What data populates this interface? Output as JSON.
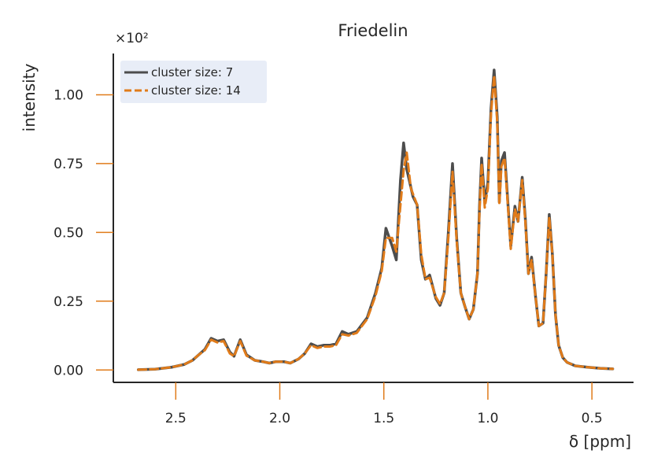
{
  "chart_data": {
    "type": "line",
    "title": "Friedelin",
    "xlabel": "δ [ppm]",
    "ylabel": "intensity",
    "y_multiplier_label": "×10²",
    "xlim": [
      2.8,
      0.3
    ],
    "ylim": [
      -0.045,
      1.15
    ],
    "x_reversed": true,
    "x_ticks": [
      2.5,
      2.0,
      1.5,
      1.0,
      0.5
    ],
    "x_tick_labels": [
      "2.5",
      "2.0",
      "1.5",
      "1.0",
      "0.5"
    ],
    "y_ticks": [
      0.0,
      0.25,
      0.5,
      0.75,
      1.0
    ],
    "y_tick_labels": [
      "0.00",
      "0.25",
      "0.50",
      "0.75",
      "1.00"
    ],
    "grid": false,
    "legend_position": "top-left",
    "series": [
      {
        "name": "cluster size: 7",
        "color": "#4d4d4d",
        "style": "solid",
        "points": [
          [
            2.68,
            0.001
          ],
          [
            2.6,
            0.003
          ],
          [
            2.52,
            0.01
          ],
          [
            2.46,
            0.02
          ],
          [
            2.42,
            0.035
          ],
          [
            2.39,
            0.055
          ],
          [
            2.36,
            0.075
          ],
          [
            2.33,
            0.115
          ],
          [
            2.3,
            0.105
          ],
          [
            2.27,
            0.11
          ],
          [
            2.24,
            0.065
          ],
          [
            2.22,
            0.05
          ],
          [
            2.19,
            0.11
          ],
          [
            2.16,
            0.055
          ],
          [
            2.12,
            0.035
          ],
          [
            2.08,
            0.03
          ],
          [
            2.05,
            0.025
          ],
          [
            2.02,
            0.03
          ],
          [
            1.98,
            0.03
          ],
          [
            1.95,
            0.025
          ],
          [
            1.91,
            0.04
          ],
          [
            1.88,
            0.06
          ],
          [
            1.85,
            0.095
          ],
          [
            1.82,
            0.085
          ],
          [
            1.79,
            0.09
          ],
          [
            1.76,
            0.09
          ],
          [
            1.73,
            0.095
          ],
          [
            1.7,
            0.14
          ],
          [
            1.67,
            0.13
          ],
          [
            1.63,
            0.14
          ],
          [
            1.58,
            0.19
          ],
          [
            1.54,
            0.28
          ],
          [
            1.51,
            0.37
          ],
          [
            1.49,
            0.515
          ],
          [
            1.46,
            0.45
          ],
          [
            1.44,
            0.4
          ],
          [
            1.42,
            0.69
          ],
          [
            1.405,
            0.825
          ],
          [
            1.39,
            0.73
          ],
          [
            1.36,
            0.63
          ],
          [
            1.34,
            0.6
          ],
          [
            1.32,
            0.4
          ],
          [
            1.3,
            0.33
          ],
          [
            1.28,
            0.345
          ],
          [
            1.25,
            0.26
          ],
          [
            1.23,
            0.235
          ],
          [
            1.21,
            0.28
          ],
          [
            1.19,
            0.5
          ],
          [
            1.17,
            0.75
          ],
          [
            1.15,
            0.48
          ],
          [
            1.13,
            0.28
          ],
          [
            1.11,
            0.23
          ],
          [
            1.09,
            0.185
          ],
          [
            1.07,
            0.22
          ],
          [
            1.05,
            0.35
          ],
          [
            1.04,
            0.6
          ],
          [
            1.03,
            0.77
          ],
          [
            1.015,
            0.61
          ],
          [
            1.0,
            0.68
          ],
          [
            0.985,
            0.95
          ],
          [
            0.97,
            1.09
          ],
          [
            0.955,
            0.92
          ],
          [
            0.945,
            0.61
          ],
          [
            0.935,
            0.76
          ],
          [
            0.92,
            0.79
          ],
          [
            0.905,
            0.62
          ],
          [
            0.89,
            0.45
          ],
          [
            0.87,
            0.595
          ],
          [
            0.855,
            0.54
          ],
          [
            0.835,
            0.7
          ],
          [
            0.82,
            0.55
          ],
          [
            0.805,
            0.35
          ],
          [
            0.79,
            0.41
          ],
          [
            0.77,
            0.26
          ],
          [
            0.755,
            0.16
          ],
          [
            0.735,
            0.17
          ],
          [
            0.72,
            0.35
          ],
          [
            0.705,
            0.565
          ],
          [
            0.69,
            0.42
          ],
          [
            0.675,
            0.2
          ],
          [
            0.66,
            0.09
          ],
          [
            0.64,
            0.045
          ],
          [
            0.62,
            0.028
          ],
          [
            0.58,
            0.015
          ],
          [
            0.52,
            0.01
          ],
          [
            0.46,
            0.006
          ],
          [
            0.4,
            0.004
          ]
        ]
      },
      {
        "name": "cluster size: 14",
        "color": "#e07b1a",
        "style": "dashed",
        "points": [
          [
            2.68,
            0.001
          ],
          [
            2.6,
            0.003
          ],
          [
            2.52,
            0.01
          ],
          [
            2.46,
            0.02
          ],
          [
            2.42,
            0.035
          ],
          [
            2.39,
            0.055
          ],
          [
            2.36,
            0.072
          ],
          [
            2.33,
            0.11
          ],
          [
            2.3,
            0.1
          ],
          [
            2.27,
            0.105
          ],
          [
            2.24,
            0.06
          ],
          [
            2.22,
            0.05
          ],
          [
            2.19,
            0.105
          ],
          [
            2.16,
            0.052
          ],
          [
            2.12,
            0.035
          ],
          [
            2.08,
            0.03
          ],
          [
            2.05,
            0.025
          ],
          [
            2.02,
            0.03
          ],
          [
            1.98,
            0.03
          ],
          [
            1.95,
            0.025
          ],
          [
            1.91,
            0.04
          ],
          [
            1.88,
            0.06
          ],
          [
            1.85,
            0.09
          ],
          [
            1.82,
            0.08
          ],
          [
            1.79,
            0.085
          ],
          [
            1.76,
            0.085
          ],
          [
            1.73,
            0.09
          ],
          [
            1.7,
            0.13
          ],
          [
            1.67,
            0.125
          ],
          [
            1.63,
            0.135
          ],
          [
            1.58,
            0.185
          ],
          [
            1.54,
            0.27
          ],
          [
            1.51,
            0.36
          ],
          [
            1.49,
            0.48
          ],
          [
            1.46,
            0.48
          ],
          [
            1.44,
            0.43
          ],
          [
            1.42,
            0.6
          ],
          [
            1.405,
            0.725
          ],
          [
            1.39,
            0.79
          ],
          [
            1.37,
            0.66
          ],
          [
            1.34,
            0.6
          ],
          [
            1.32,
            0.42
          ],
          [
            1.3,
            0.33
          ],
          [
            1.28,
            0.335
          ],
          [
            1.25,
            0.265
          ],
          [
            1.23,
            0.24
          ],
          [
            1.21,
            0.28
          ],
          [
            1.19,
            0.48
          ],
          [
            1.17,
            0.72
          ],
          [
            1.15,
            0.47
          ],
          [
            1.13,
            0.28
          ],
          [
            1.11,
            0.23
          ],
          [
            1.09,
            0.185
          ],
          [
            1.07,
            0.22
          ],
          [
            1.05,
            0.35
          ],
          [
            1.04,
            0.58
          ],
          [
            1.03,
            0.75
          ],
          [
            1.015,
            0.59
          ],
          [
            1.0,
            0.66
          ],
          [
            0.985,
            0.93
          ],
          [
            0.97,
            1.07
          ],
          [
            0.955,
            0.9
          ],
          [
            0.945,
            0.6
          ],
          [
            0.935,
            0.74
          ],
          [
            0.92,
            0.77
          ],
          [
            0.905,
            0.61
          ],
          [
            0.89,
            0.44
          ],
          [
            0.87,
            0.585
          ],
          [
            0.855,
            0.54
          ],
          [
            0.835,
            0.69
          ],
          [
            0.82,
            0.54
          ],
          [
            0.805,
            0.35
          ],
          [
            0.79,
            0.4
          ],
          [
            0.77,
            0.26
          ],
          [
            0.755,
            0.16
          ],
          [
            0.735,
            0.17
          ],
          [
            0.72,
            0.35
          ],
          [
            0.705,
            0.555
          ],
          [
            0.69,
            0.42
          ],
          [
            0.675,
            0.2
          ],
          [
            0.66,
            0.09
          ],
          [
            0.64,
            0.045
          ],
          [
            0.62,
            0.028
          ],
          [
            0.58,
            0.015
          ],
          [
            0.52,
            0.01
          ],
          [
            0.46,
            0.006
          ],
          [
            0.4,
            0.004
          ]
        ]
      }
    ]
  },
  "colors": {
    "axis": "#262626",
    "tick": "#e07b1a",
    "legend_background": "#e8edf7"
  }
}
